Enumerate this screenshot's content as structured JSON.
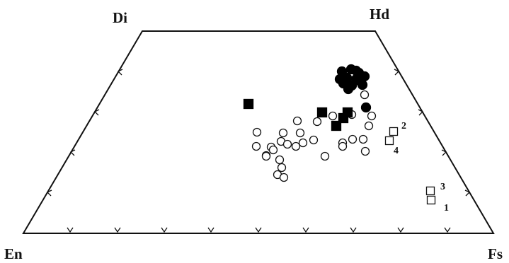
{
  "vertices": {
    "top_left": "Di",
    "top_right": "Hd",
    "bottom_left": "En",
    "bottom_right": "Fs"
  },
  "point_labels": [
    "2",
    "4",
    "3",
    "1"
  ],
  "colors": {
    "frame": "#111111",
    "filled_marker": "#000000",
    "open_marker_fill": "#ffffff",
    "open_marker_stroke": "#111111"
  },
  "legend_markers": {
    "open_circle": "open-circle-marker",
    "filled_circle": "filled-circle-marker",
    "open_square": "open-square-marker",
    "filled_square": "filled-square-marker"
  }
}
